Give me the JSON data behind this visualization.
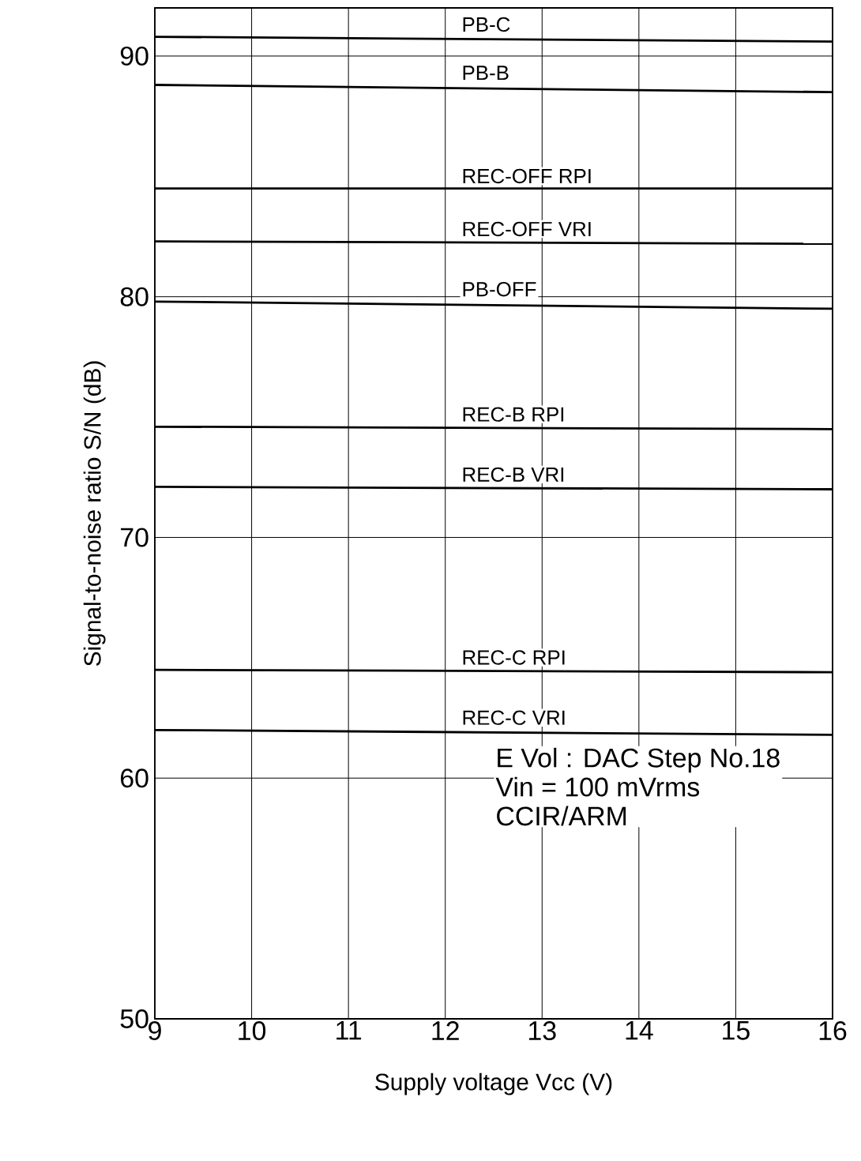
{
  "chart_data": {
    "type": "line",
    "xlabel": "Supply voltage Vcc (V)",
    "ylabel": "Signal-to-noise ratio S/N (dB)",
    "x": [
      9,
      16
    ],
    "series": [
      {
        "name": "PB-C",
        "color": "#000000",
        "values": [
          90.8,
          90.6
        ]
      },
      {
        "name": "PB-B",
        "color": "#000000",
        "values": [
          88.8,
          88.5
        ]
      },
      {
        "name": "REC-OFF RPI",
        "color": "#000000",
        "values": [
          84.5,
          84.5
        ]
      },
      {
        "name": "REC-OFF VRI",
        "color": "#000000",
        "values": [
          82.3,
          82.2
        ]
      },
      {
        "name": "PB-OFF",
        "color": "#000000",
        "values": [
          79.8,
          79.5
        ]
      },
      {
        "name": "REC-B RPI",
        "color": "#000000",
        "values": [
          74.6,
          74.5
        ]
      },
      {
        "name": "REC-B VRI",
        "color": "#000000",
        "values": [
          72.1,
          72.0
        ]
      },
      {
        "name": "REC-C RPI",
        "color": "#000000",
        "values": [
          64.5,
          64.4
        ]
      },
      {
        "name": "REC-C VRI",
        "color": "#000000",
        "values": [
          62.0,
          61.8
        ]
      }
    ],
    "xlim": [
      9,
      16
    ],
    "ylim": [
      50,
      92
    ],
    "xticks": [
      9,
      10,
      11,
      12,
      13,
      14,
      15,
      16
    ],
    "yticks": [
      50,
      60,
      70,
      80,
      90
    ],
    "grid": true,
    "marker": "none",
    "line_style": "solid",
    "annotations": [
      "E Vol : DAC Step No.18",
      "Vin = 100 mVrms",
      "CCIR/ARM"
    ]
  }
}
